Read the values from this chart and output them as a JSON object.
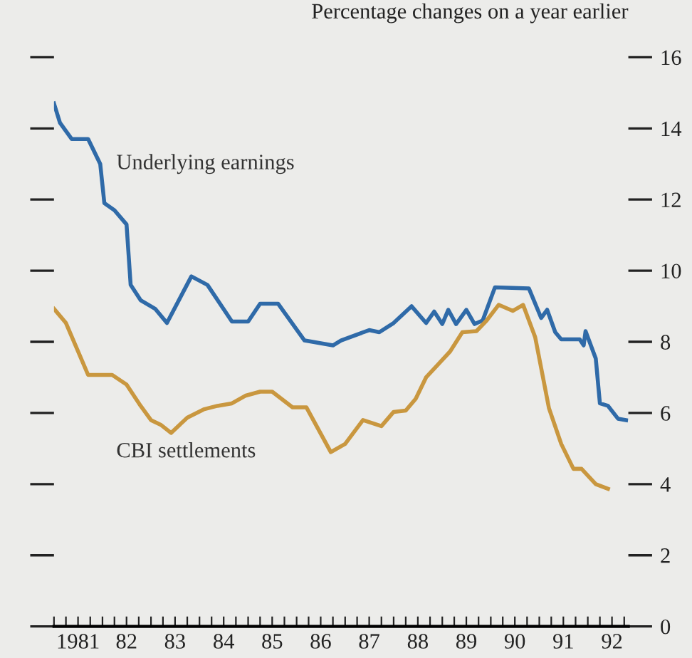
{
  "chart_data": {
    "type": "line",
    "ylabel": "Percentage changes on a year earlier",
    "xlim": [
      "1981-01-01",
      "1992-11-01"
    ],
    "ylim": [
      0,
      16
    ],
    "yticks": [
      0,
      2,
      4,
      6,
      8,
      10,
      12,
      14,
      16
    ],
    "xticks": [
      {
        "value": "1981-01-01",
        "label": null
      },
      {
        "value": "1981-04-01",
        "label": null
      },
      {
        "value": "1981-07-01",
        "label": "1981"
      },
      {
        "value": "1981-10-01",
        "label": null
      },
      {
        "value": "1982-01-01",
        "label": null
      },
      {
        "value": "1982-04-01",
        "label": null
      },
      {
        "value": "1982-07-01",
        "label": "82"
      },
      {
        "value": "1982-10-01",
        "label": null
      },
      {
        "value": "1983-01-01",
        "label": null
      },
      {
        "value": "1983-04-01",
        "label": null
      },
      {
        "value": "1983-07-01",
        "label": "83"
      },
      {
        "value": "1983-10-01",
        "label": null
      },
      {
        "value": "1984-01-01",
        "label": null
      },
      {
        "value": "1984-04-01",
        "label": null
      },
      {
        "value": "1984-07-01",
        "label": "84"
      },
      {
        "value": "1984-10-01",
        "label": null
      },
      {
        "value": "1985-01-01",
        "label": null
      },
      {
        "value": "1985-04-01",
        "label": null
      },
      {
        "value": "1985-07-01",
        "label": "85"
      },
      {
        "value": "1985-10-01",
        "label": null
      },
      {
        "value": "1986-01-01",
        "label": null
      },
      {
        "value": "1986-04-01",
        "label": null
      },
      {
        "value": "1986-07-01",
        "label": "86"
      },
      {
        "value": "1986-10-01",
        "label": null
      },
      {
        "value": "1987-01-01",
        "label": null
      },
      {
        "value": "1987-04-01",
        "label": null
      },
      {
        "value": "1987-07-01",
        "label": "87"
      },
      {
        "value": "1987-10-01",
        "label": null
      },
      {
        "value": "1988-01-01",
        "label": null
      },
      {
        "value": "1988-04-01",
        "label": null
      },
      {
        "value": "1988-07-01",
        "label": "88"
      },
      {
        "value": "1988-10-01",
        "label": null
      },
      {
        "value": "1989-01-01",
        "label": null
      },
      {
        "value": "1989-04-01",
        "label": null
      },
      {
        "value": "1989-07-01",
        "label": "89"
      },
      {
        "value": "1989-10-01",
        "label": null
      },
      {
        "value": "1990-01-01",
        "label": null
      },
      {
        "value": "1990-04-01",
        "label": null
      },
      {
        "value": "1990-07-01",
        "label": "90"
      },
      {
        "value": "1990-10-01",
        "label": null
      },
      {
        "value": "1991-01-01",
        "label": null
      },
      {
        "value": "1991-04-01",
        "label": null
      },
      {
        "value": "1991-07-01",
        "label": "91"
      },
      {
        "value": "1991-10-01",
        "label": null
      },
      {
        "value": "1992-01-01",
        "label": null
      },
      {
        "value": "1992-04-01",
        "label": null
      },
      {
        "value": "1992-07-01",
        "label": "92"
      },
      {
        "value": "1992-10-01",
        "label": null
      }
    ],
    "grid": false,
    "series": [
      {
        "name": "Underlying earnings",
        "color": "#2f6aa8",
        "x": [
          "1981-01-01",
          "1981-02-15",
          "1981-05-15",
          "1981-09-15",
          "1981-12-15",
          "1982-01-15",
          "1982-04-01",
          "1982-07-01",
          "1982-08-01",
          "1982-10-15",
          "1983-02-01",
          "1983-05-01",
          "1983-11-01",
          "1984-03-01",
          "1984-09-01",
          "1985-01-01",
          "1985-04-01",
          "1985-08-15",
          "1986-03-01",
          "1986-10-01",
          "1986-12-01",
          "1987-07-01",
          "1987-09-15",
          "1988-01-01",
          "1988-05-15",
          "1988-09-01",
          "1988-11-01",
          "1989-01-01",
          "1989-02-15",
          "1989-04-15",
          "1989-07-01",
          "1989-09-01",
          "1989-11-01",
          "1990-02-01",
          "1990-10-15",
          "1991-01-15",
          "1991-03-01",
          "1991-05-01",
          "1991-06-15",
          "1991-11-01",
          "1991-12-01",
          "1991-12-15",
          "1992-03-01",
          "1992-04-01",
          "1992-06-01",
          "1992-08-15",
          "1992-10-15"
        ],
        "values": [
          14.7,
          14.16,
          13.7,
          13.7,
          13.0,
          11.9,
          11.7,
          11.3,
          9.6,
          9.17,
          8.93,
          8.53,
          9.84,
          9.6,
          8.57,
          8.57,
          9.07,
          9.07,
          8.04,
          7.9,
          8.04,
          8.33,
          8.27,
          8.53,
          9.0,
          8.53,
          8.85,
          8.5,
          8.9,
          8.5,
          8.9,
          8.5,
          8.6,
          9.53,
          9.5,
          8.67,
          8.9,
          8.27,
          8.07,
          8.07,
          7.9,
          8.3,
          7.53,
          6.27,
          6.2,
          5.84,
          5.8
        ]
      },
      {
        "name": "CBI settlements",
        "color": "#c9973f",
        "x": [
          "1981-01-01",
          "1981-04-01",
          "1981-09-15",
          "1982-03-15",
          "1982-07-01",
          "1982-10-15",
          "1983-01-01",
          "1983-03-15",
          "1983-06-01",
          "1983-10-01",
          "1984-02-01",
          "1984-05-15",
          "1984-09-01",
          "1984-12-15",
          "1985-04-01",
          "1985-07-01",
          "1985-12-01",
          "1986-03-15",
          "1986-09-15",
          "1987-01-01",
          "1987-05-15",
          "1987-10-01",
          "1988-01-01",
          "1988-04-01",
          "1988-06-15",
          "1988-09-01",
          "1989-03-01",
          "1989-06-01",
          "1989-09-15",
          "1989-12-01",
          "1990-03-01",
          "1990-06-15",
          "1990-09-01",
          "1990-12-01",
          "1991-03-15",
          "1991-06-15",
          "1991-09-15",
          "1991-11-15",
          "1992-03-01",
          "1992-06-01"
        ],
        "values": [
          8.93,
          8.53,
          7.07,
          7.07,
          6.8,
          6.2,
          5.8,
          5.67,
          5.44,
          5.87,
          6.1,
          6.2,
          6.27,
          6.49,
          6.6,
          6.6,
          6.16,
          6.16,
          4.9,
          5.13,
          5.8,
          5.63,
          6.03,
          6.07,
          6.4,
          7.0,
          7.73,
          8.27,
          8.3,
          8.6,
          9.04,
          8.87,
          9.04,
          8.13,
          6.13,
          5.13,
          4.43,
          4.43,
          4.0,
          3.87
        ]
      }
    ]
  }
}
